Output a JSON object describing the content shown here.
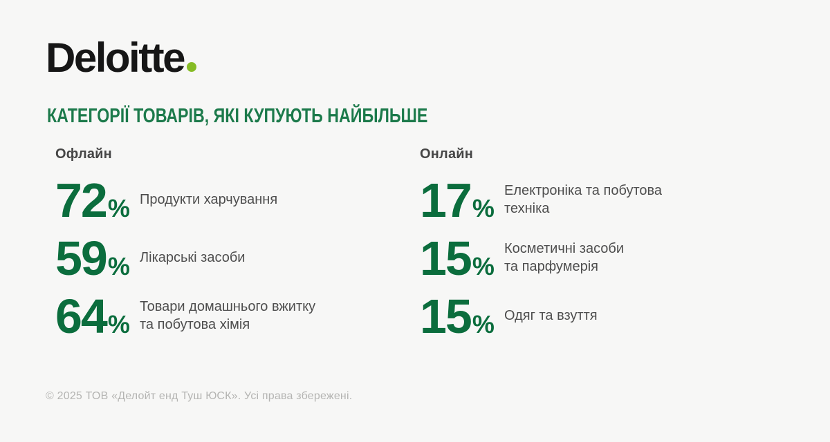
{
  "page": {
    "background": "#f7f7f6"
  },
  "logo": {
    "text": "Deloitte",
    "dot_color": "#86bc25"
  },
  "title": {
    "text": "КАТЕГОРІЇ ТОВАРІВ, ЯКІ КУПУЮТЬ НАЙБІЛЬШЕ",
    "color": "#1c7a4b"
  },
  "columns": [
    {
      "header": "Офлайн",
      "items": [
        {
          "value": "72",
          "unit": "%",
          "label": "Продукти харчування"
        },
        {
          "value": "59",
          "unit": "%",
          "label": "Лікарські засоби"
        },
        {
          "value": "64",
          "unit": "%",
          "label": "Товари домашнього вжитку\nта побутова хімія"
        }
      ]
    },
    {
      "header": "Онлайн",
      "items": [
        {
          "value": "17",
          "unit": "%",
          "label": "Електроніка та побутова\nтехніка"
        },
        {
          "value": "15",
          "unit": "%",
          "label": "Косметичні засоби\nта парфумерія"
        },
        {
          "value": "15",
          "unit": "%",
          "label": "Одяг та взуття"
        }
      ]
    }
  ],
  "footer": {
    "text": "© 2025 ТОВ «Делойт енд Туш ЮСК». Усі права збережені."
  },
  "chart_data": {
    "type": "table",
    "title": "КАТЕГОРІЇ ТОВАРІВ, ЯКІ КУПУЮТЬ НАЙБІЛЬШЕ",
    "unit": "%",
    "series": [
      {
        "name": "Офлайн",
        "categories": [
          "Продукти харчування",
          "Лікарські засоби",
          "Товари домашнього вжитку та побутова хімія"
        ],
        "values": [
          72,
          59,
          64
        ]
      },
      {
        "name": "Онлайн",
        "categories": [
          "Електроніка та побутова техніка",
          "Косметичні засоби та парфумерія",
          "Одяг та взуття"
        ],
        "values": [
          17,
          15,
          15
        ]
      }
    ],
    "accent_color": "#0b6d3d",
    "layout": "two-column stat list, no axes, no grid"
  }
}
